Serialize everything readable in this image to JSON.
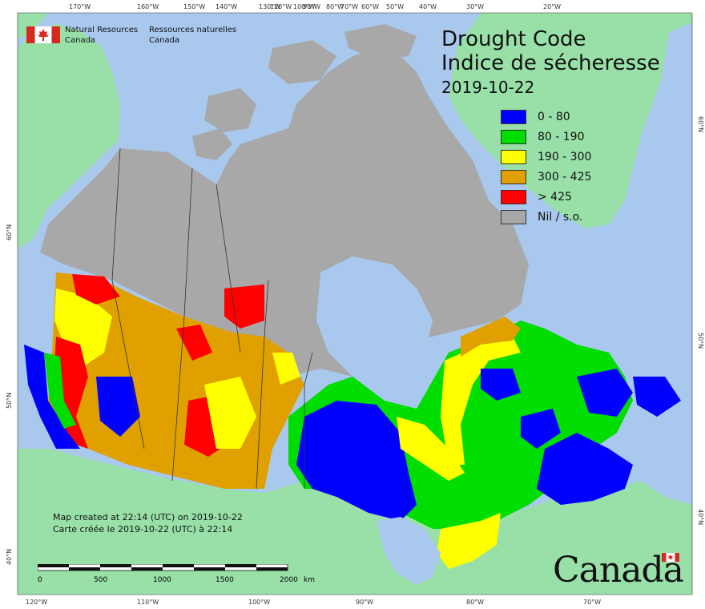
{
  "title": {
    "line1": "Drought Code",
    "line2": "Indice de sécheresse",
    "date": "2019-10-22"
  },
  "organization": {
    "en_line1": "Natural Resources",
    "en_line2": "Canada",
    "fr_line1": "Ressources naturelles",
    "fr_line2": "Canada"
  },
  "legend": [
    {
      "label": "0 - 80",
      "color": "#0000ff"
    },
    {
      "label": "80 - 190",
      "color": "#00dd00"
    },
    {
      "label": "190 - 300",
      "color": "#ffff00"
    },
    {
      "label": "300 - 425",
      "color": "#e0a000"
    },
    {
      "label": "> 425",
      "color": "#ff0000"
    },
    {
      "label": "Nil / s.o.",
      "color": "#a8a8a8"
    }
  ],
  "credit": {
    "en": "Map created at 22:14 (UTC) on 2019-10-22",
    "fr": "Carte créée le 2019-10-22 (UTC) à 22:14"
  },
  "scale": {
    "ticks": [
      "0",
      "500",
      "1000",
      "1500",
      "2000"
    ],
    "unit": "km"
  },
  "graticule": {
    "top": [
      "170°W",
      "160°W",
      "150°W",
      "140°W",
      "130°W",
      "120°W",
      "100°W",
      "90°W",
      "80°W",
      "70°W",
      "60°W",
      "50°W",
      "40°W",
      "30°W",
      "20°W"
    ],
    "bottom": [
      "120°W",
      "110°W",
      "100°W",
      "90°W",
      "80°W",
      "70°W"
    ],
    "left": [
      "60°N",
      "50°N",
      "40°N"
    ],
    "right": [
      "60°N",
      "50°N",
      "40°N"
    ]
  },
  "wordmark": "Canada",
  "colors": {
    "ocean": "#a9c8ee",
    "foreign_land": "#98e0a8",
    "nil_land": "#a8a8a8",
    "border": "#333333"
  }
}
